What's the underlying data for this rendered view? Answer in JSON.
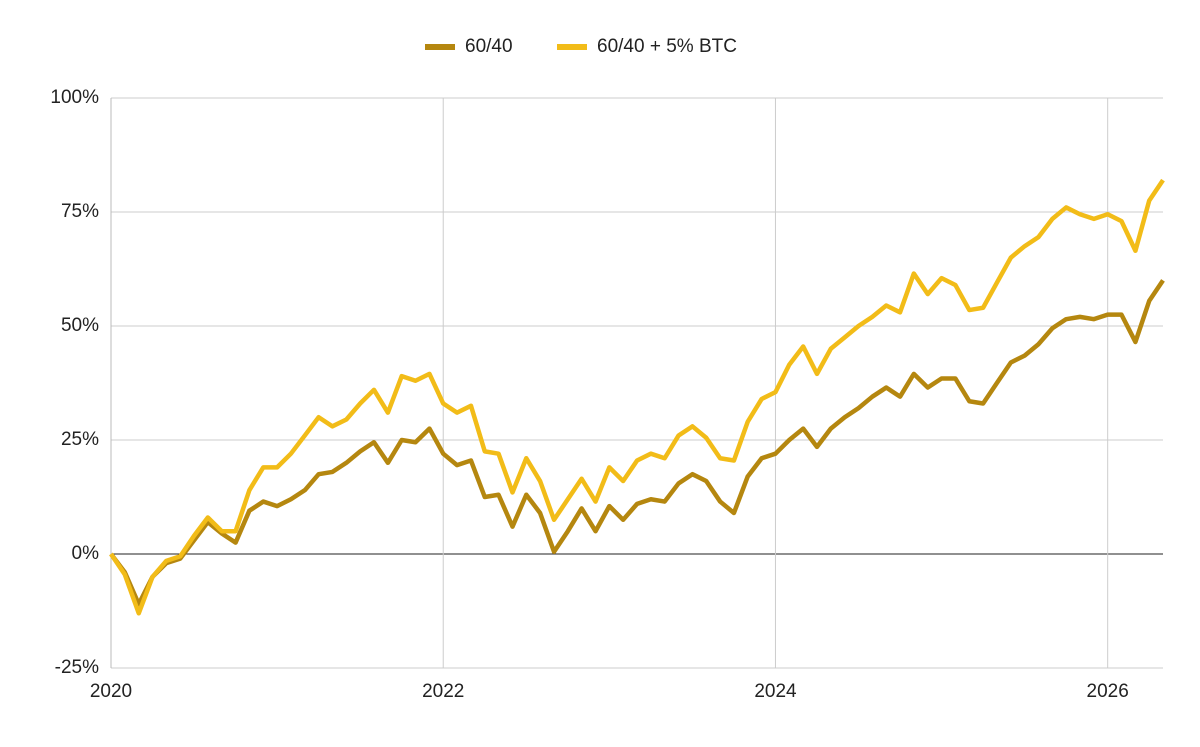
{
  "chart_data": {
    "type": "line",
    "x": [
      2020,
      2020.083,
      2020.167,
      2020.25,
      2020.333,
      2020.417,
      2020.5,
      2020.583,
      2020.667,
      2020.75,
      2020.833,
      2020.917,
      2021,
      2021.083,
      2021.167,
      2021.25,
      2021.333,
      2021.417,
      2021.5,
      2021.583,
      2021.667,
      2021.75,
      2021.833,
      2021.917,
      2022,
      2022.083,
      2022.167,
      2022.25,
      2022.333,
      2022.417,
      2022.5,
      2022.583,
      2022.667,
      2022.75,
      2022.833,
      2022.917,
      2023,
      2023.083,
      2023.167,
      2023.25,
      2023.333,
      2023.417,
      2023.5,
      2023.583,
      2023.667,
      2023.75,
      2023.833,
      2023.917,
      2024,
      2024.083,
      2024.167,
      2024.25,
      2024.333,
      2024.417,
      2024.5,
      2024.583,
      2024.667,
      2024.75,
      2024.833,
      2024.917,
      2025,
      2025.083,
      2025.167,
      2025.25,
      2025.333,
      2025.417,
      2025.5,
      2025.583,
      2025.667,
      2025.75,
      2025.833,
      2025.917,
      2026,
      2026.083,
      2026.167,
      2026.25,
      2026.333
    ],
    "series": [
      {
        "name": "60/40",
        "color": "#b5870f",
        "values": [
          0,
          -4,
          -11,
          -5,
          -2,
          -1,
          3,
          7,
          4.5,
          2.5,
          9.5,
          11.5,
          10.5,
          12,
          14,
          17.5,
          18,
          20,
          22.5,
          24.5,
          20,
          25,
          24.5,
          27.5,
          22,
          19.5,
          20.5,
          12.5,
          13,
          6,
          13,
          9,
          0.5,
          5,
          10,
          5,
          10.5,
          7.5,
          11,
          12,
          11.5,
          15.5,
          17.5,
          16,
          11.5,
          9,
          17,
          21,
          22,
          25,
          27.5,
          23.5,
          27.5,
          30,
          32,
          34.5,
          36.5,
          34.5,
          39.5,
          36.5,
          38.5,
          38.5,
          33.5,
          33,
          37.5,
          42,
          43.5,
          46,
          49.5,
          51.5,
          52,
          51.5,
          52.5,
          52.5,
          46.5,
          55.5,
          60
        ]
      },
      {
        "name": "60/40 + 5% BTC",
        "color": "#f2bc18",
        "values": [
          0,
          -4.5,
          -13,
          -5,
          -1.5,
          -0.5,
          4,
          8,
          5,
          5,
          14,
          19,
          19,
          22,
          26,
          30,
          28,
          29.5,
          33,
          36,
          31,
          39,
          38,
          39.5,
          33,
          31,
          32.5,
          22.5,
          22,
          13.5,
          21,
          16,
          7.5,
          12,
          16.5,
          11.5,
          19,
          16,
          20.5,
          22,
          21,
          26,
          28,
          25.5,
          21,
          20.5,
          29,
          34,
          35.5,
          41.5,
          45.5,
          39.5,
          45,
          47.5,
          50,
          52,
          54.5,
          53,
          61.5,
          57,
          60.5,
          59,
          53.5,
          54,
          59.5,
          65,
          67.5,
          69.5,
          73.5,
          76,
          74.5,
          73.5,
          74.5,
          73,
          66.5,
          77.5,
          82
        ]
      }
    ],
    "xlim": [
      2020,
      2026.333
    ],
    "xticks": [
      2020,
      2022,
      2024,
      2026
    ],
    "ylim": [
      -25,
      100
    ],
    "yticks": [
      {
        "value": -25,
        "label": "-25%"
      },
      {
        "value": 0,
        "label": "0%"
      },
      {
        "value": 25,
        "label": "25%"
      },
      {
        "value": 50,
        "label": "50%"
      },
      {
        "value": 75,
        "label": "75%"
      },
      {
        "value": 100,
        "label": "100%"
      }
    ],
    "grid": true,
    "legend": "top"
  }
}
